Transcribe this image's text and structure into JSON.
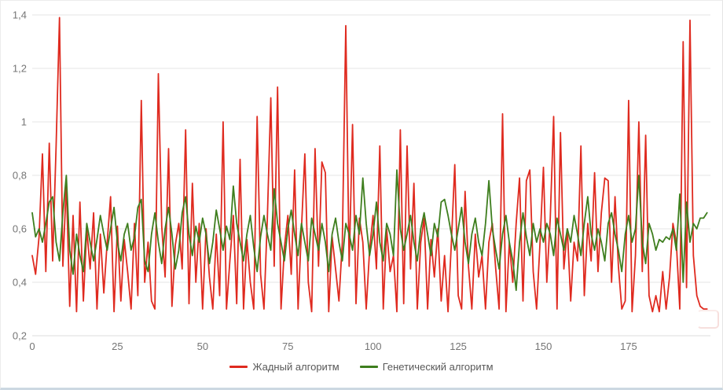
{
  "colors": {
    "greedy_red": "#df2a1f",
    "genetic_green": "#3e7e1e",
    "gridline": "#e6e6e6",
    "axis_line": "#dcdcdc",
    "tick_label": "#757575",
    "legend_text": "#585858"
  },
  "legend": {
    "position": "bottom"
  },
  "chart_data": {
    "type": "line",
    "title": "",
    "xlabel": "",
    "ylabel": "",
    "grid": true,
    "legend_position": "bottom",
    "ylim": [
      0.2,
      1.4
    ],
    "xlim": [
      0,
      199
    ],
    "yticks": [
      {
        "v": 0.2,
        "label": "0,2"
      },
      {
        "v": 0.4,
        "label": "0,4"
      },
      {
        "v": 0.6,
        "label": "0,6"
      },
      {
        "v": 0.8,
        "label": "0,8"
      },
      {
        "v": 1.0,
        "label": "1"
      },
      {
        "v": 1.2,
        "label": "1,2"
      },
      {
        "v": 1.4,
        "label": "1,4"
      }
    ],
    "xticks": [
      {
        "v": 0,
        "label": "0"
      },
      {
        "v": 25,
        "label": "25"
      },
      {
        "v": 50,
        "label": "50"
      },
      {
        "v": 75,
        "label": "75"
      },
      {
        "v": 100,
        "label": "100"
      },
      {
        "v": 125,
        "label": "125"
      },
      {
        "v": 150,
        "label": "150"
      },
      {
        "v": 175,
        "label": "175"
      }
    ],
    "series": [
      {
        "name": "Жадный алгоритм",
        "color": "#df2a1f",
        "values": [
          0.5,
          0.43,
          0.57,
          0.88,
          0.44,
          0.92,
          0.48,
          0.91,
          1.39,
          0.46,
          0.77,
          0.31,
          0.65,
          0.29,
          0.7,
          0.33,
          0.6,
          0.45,
          0.66,
          0.3,
          0.58,
          0.36,
          0.55,
          0.72,
          0.29,
          0.61,
          0.33,
          0.56,
          0.44,
          0.3,
          0.62,
          0.35,
          1.08,
          0.4,
          0.55,
          0.33,
          0.3,
          1.18,
          0.61,
          0.42,
          0.9,
          0.31,
          0.54,
          0.62,
          0.45,
          0.97,
          0.32,
          0.77,
          0.4,
          0.62,
          0.3,
          0.6,
          0.42,
          0.3,
          0.58,
          0.35,
          1.0,
          0.3,
          0.48,
          0.65,
          0.32,
          0.86,
          0.3,
          0.56,
          0.4,
          0.3,
          1.02,
          0.43,
          0.3,
          0.64,
          1.09,
          0.46,
          1.13,
          0.3,
          0.53,
          0.65,
          0.43,
          0.82,
          0.3,
          0.6,
          0.88,
          0.4,
          0.29,
          0.9,
          0.46,
          0.85,
          0.81,
          0.29,
          0.57,
          0.45,
          0.33,
          0.55,
          1.36,
          0.46,
          0.99,
          0.32,
          0.64,
          0.55,
          0.3,
          0.52,
          0.65,
          0.45,
          0.91,
          0.3,
          0.6,
          0.44,
          0.5,
          0.29,
          0.97,
          0.32,
          0.91,
          0.45,
          0.77,
          0.3,
          0.55,
          0.64,
          0.3,
          0.56,
          0.42,
          0.6,
          0.33,
          0.5,
          0.29,
          0.55,
          0.84,
          0.35,
          0.3,
          0.74,
          0.46,
          0.3,
          0.58,
          0.42,
          0.5,
          0.3,
          0.55,
          0.62,
          0.45,
          0.3,
          1.03,
          0.29,
          0.55,
          0.4,
          0.62,
          0.79,
          0.33,
          0.78,
          0.82,
          0.44,
          0.3,
          0.55,
          0.83,
          0.4,
          0.64,
          1.02,
          0.3,
          0.96,
          0.45,
          0.6,
          0.33,
          0.55,
          0.48,
          0.91,
          0.35,
          0.62,
          0.48,
          0.81,
          0.44,
          0.66,
          0.79,
          0.78,
          0.4,
          0.72,
          0.46,
          0.3,
          0.33,
          1.08,
          0.29,
          0.5,
          1.0,
          0.44,
          0.95,
          0.35,
          0.29,
          0.35,
          0.29,
          0.44,
          0.3,
          0.42,
          0.62,
          0.55,
          0.3,
          1.3,
          0.38,
          1.38,
          0.5,
          0.35,
          0.31,
          0.3,
          0.3
        ]
      },
      {
        "name": "Генетический алгоритм",
        "color": "#3e7e1e",
        "values": [
          0.66,
          0.57,
          0.6,
          0.55,
          0.62,
          0.7,
          0.72,
          0.55,
          0.48,
          0.66,
          0.8,
          0.52,
          0.43,
          0.58,
          0.5,
          0.44,
          0.62,
          0.55,
          0.48,
          0.56,
          0.65,
          0.58,
          0.52,
          0.6,
          0.68,
          0.55,
          0.48,
          0.58,
          0.62,
          0.52,
          0.57,
          0.68,
          0.71,
          0.48,
          0.44,
          0.58,
          0.66,
          0.55,
          0.47,
          0.6,
          0.68,
          0.58,
          0.45,
          0.52,
          0.66,
          0.72,
          0.58,
          0.5,
          0.61,
          0.55,
          0.64,
          0.58,
          0.47,
          0.55,
          0.67,
          0.6,
          0.52,
          0.61,
          0.56,
          0.76,
          0.62,
          0.55,
          0.48,
          0.58,
          0.65,
          0.53,
          0.44,
          0.57,
          0.65,
          0.58,
          0.52,
          0.75,
          0.62,
          0.55,
          0.48,
          0.6,
          0.67,
          0.58,
          0.5,
          0.62,
          0.55,
          0.48,
          0.64,
          0.58,
          0.52,
          0.62,
          0.55,
          0.44,
          0.58,
          0.64,
          0.55,
          0.48,
          0.62,
          0.58,
          0.52,
          0.65,
          0.58,
          0.79,
          0.62,
          0.5,
          0.58,
          0.7,
          0.55,
          0.48,
          0.62,
          0.58,
          0.5,
          0.82,
          0.6,
          0.52,
          0.58,
          0.65,
          0.55,
          0.48,
          0.6,
          0.66,
          0.58,
          0.5,
          0.62,
          0.57,
          0.7,
          0.71,
          0.65,
          0.58,
          0.52,
          0.6,
          0.68,
          0.55,
          0.47,
          0.58,
          0.64,
          0.55,
          0.5,
          0.62,
          0.78,
          0.6,
          0.52,
          0.45,
          0.58,
          0.65,
          0.55,
          0.48,
          0.37,
          0.55,
          0.66,
          0.57,
          0.5,
          0.62,
          0.55,
          0.6,
          0.55,
          0.62,
          0.58,
          0.5,
          0.64,
          0.58,
          0.52,
          0.6,
          0.55,
          0.65,
          0.58,
          0.5,
          0.62,
          0.72,
          0.58,
          0.52,
          0.6,
          0.55,
          0.48,
          0.62,
          0.66,
          0.58,
          0.52,
          0.44,
          0.58,
          0.65,
          0.55,
          0.6,
          0.8,
          0.55,
          0.47,
          0.62,
          0.58,
          0.52,
          0.56,
          0.55,
          0.57,
          0.56,
          0.6,
          0.52,
          0.73,
          0.4,
          0.7,
          0.55,
          0.62,
          0.6,
          0.64,
          0.64,
          0.66
        ]
      }
    ]
  }
}
